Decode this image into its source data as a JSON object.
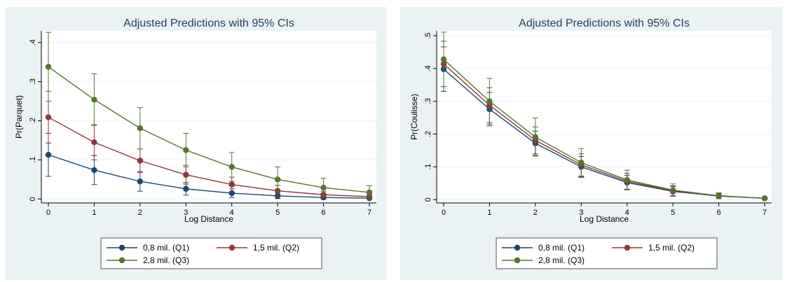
{
  "chart_data": [
    {
      "type": "line",
      "title": "Adjusted Predictions with 95% CIs",
      "xlabel": "Log Distance",
      "ylabel": "Pr(Parquet)",
      "x": [
        0,
        1,
        2,
        3,
        4,
        5,
        6,
        7
      ],
      "xticks": [
        "0",
        "1",
        "2",
        "3",
        "4",
        "5",
        "6",
        "7"
      ],
      "yticks": [
        0,
        0.1,
        0.2,
        0.3,
        0.4
      ],
      "ytick_labels": [
        "0",
        ".1",
        ".2",
        ".3",
        ".4"
      ],
      "xlim": [
        0,
        7
      ],
      "ylim": [
        -0.01,
        0.43
      ],
      "grid": true,
      "legend_placement": "bottom",
      "series": [
        {
          "name": "0,8 mil. (Q1)",
          "color": "#1a476f",
          "values": [
            0.113,
            0.074,
            0.045,
            0.026,
            0.015,
            0.008,
            0.004,
            0.002
          ],
          "ci_low": [
            0.058,
            0.037,
            0.02,
            0.01,
            0.004,
            0.001,
            0.0,
            0.0
          ],
          "ci_high": [
            0.168,
            0.111,
            0.07,
            0.042,
            0.026,
            0.015,
            0.008,
            0.005
          ]
        },
        {
          "name": "1,5 mil. (Q2)",
          "color": "#90353b",
          "values": [
            0.209,
            0.145,
            0.098,
            0.062,
            0.037,
            0.021,
            0.011,
            0.006
          ],
          "ci_low": [
            0.143,
            0.1,
            0.068,
            0.038,
            0.018,
            0.007,
            0.002,
            0.0
          ],
          "ci_high": [
            0.275,
            0.19,
            0.128,
            0.086,
            0.056,
            0.035,
            0.02,
            0.012
          ]
        },
        {
          "name": "2,8 mil. (Q3)",
          "color": "#55752f",
          "values": [
            0.338,
            0.254,
            0.181,
            0.125,
            0.082,
            0.05,
            0.029,
            0.017
          ],
          "ci_low": [
            0.25,
            0.188,
            0.128,
            0.082,
            0.045,
            0.02,
            0.006,
            0.0
          ],
          "ci_high": [
            0.426,
            0.32,
            0.234,
            0.168,
            0.119,
            0.082,
            0.053,
            0.034
          ]
        }
      ]
    },
    {
      "type": "line",
      "title": "Adjusted Predictions with 95% CIs",
      "xlabel": "Log Distance",
      "ylabel": "Pr(Coulisse)",
      "x": [
        0,
        1,
        2,
        3,
        4,
        5,
        6,
        7
      ],
      "xticks": [
        "0",
        "1",
        "2",
        "3",
        "4",
        "5",
        "6",
        "7"
      ],
      "yticks": [
        0,
        0.1,
        0.2,
        0.3,
        0.4,
        0.5
      ],
      "ytick_labels": [
        "0",
        ".1",
        ".2",
        ".3",
        ".4",
        ".5"
      ],
      "xlim": [
        0,
        7
      ],
      "ylim": [
        -0.01,
        0.515
      ],
      "grid": true,
      "legend_placement": "bottom",
      "series": [
        {
          "name": "0,8 mil. (Q1)",
          "color": "#1a476f",
          "values": [
            0.398,
            0.276,
            0.172,
            0.1,
            0.052,
            0.025,
            0.011,
            0.004
          ],
          "ci_low": [
            0.33,
            0.225,
            0.135,
            0.068,
            0.03,
            0.01,
            0.003,
            0.0
          ],
          "ci_high": [
            0.466,
            0.327,
            0.209,
            0.132,
            0.074,
            0.04,
            0.019,
            0.008
          ]
        },
        {
          "name": "1,5 mil. (Q2)",
          "color": "#90353b",
          "values": [
            0.414,
            0.288,
            0.181,
            0.106,
            0.056,
            0.027,
            0.012,
            0.004
          ],
          "ci_low": [
            0.345,
            0.235,
            0.14,
            0.072,
            0.032,
            0.012,
            0.004,
            0.0
          ],
          "ci_high": [
            0.483,
            0.341,
            0.222,
            0.14,
            0.08,
            0.042,
            0.02,
            0.008
          ]
        },
        {
          "name": "2,8 mil. (Q3)",
          "color": "#55752f",
          "values": [
            0.428,
            0.3,
            0.191,
            0.113,
            0.06,
            0.029,
            0.012,
            0.004
          ],
          "ci_low": [
            0.345,
            0.23,
            0.133,
            0.07,
            0.03,
            0.01,
            0.003,
            0.0
          ],
          "ci_high": [
            0.511,
            0.37,
            0.249,
            0.156,
            0.09,
            0.048,
            0.021,
            0.008
          ]
        }
      ]
    }
  ]
}
